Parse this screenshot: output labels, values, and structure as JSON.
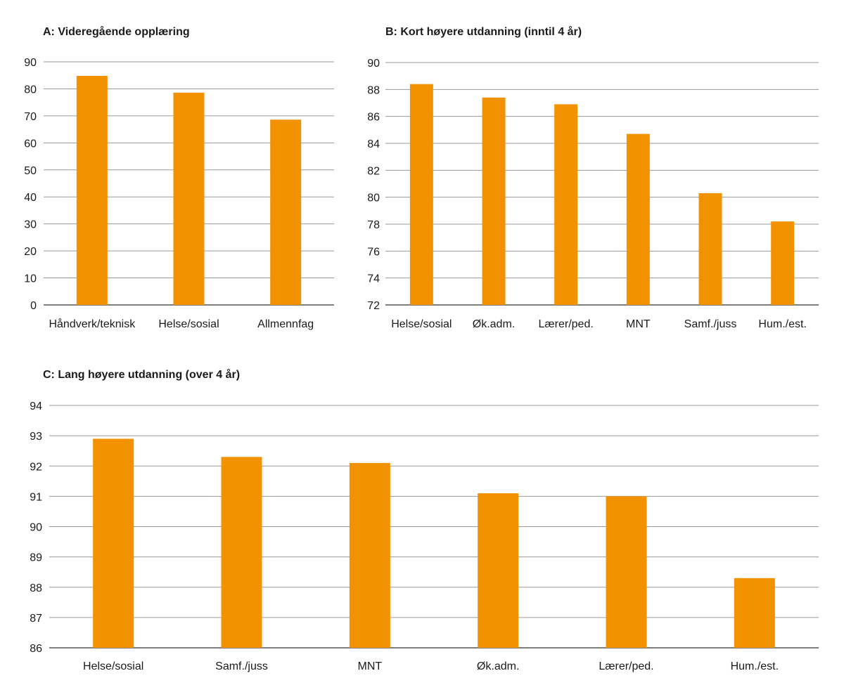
{
  "chart_data": [
    {
      "type": "bar",
      "title": "A: Videregående opplæring",
      "categories": [
        "Håndverk/teknisk",
        "Helse/sosial",
        "Allmennfag"
      ],
      "values": [
        84.8,
        78.6,
        68.6
      ],
      "ylim": [
        0,
        90
      ],
      "yticks": [
        0,
        10,
        20,
        30,
        40,
        50,
        60,
        70,
        80,
        90
      ],
      "grid": true,
      "color": "#f39200"
    },
    {
      "type": "bar",
      "title": "B: Kort høyere utdanning (inntil 4 år)",
      "categories": [
        "Helse/sosial",
        "Øk.adm.",
        "Lærer/ped.",
        "MNT",
        "Samf./juss",
        "Hum./est."
      ],
      "values": [
        88.4,
        87.4,
        86.9,
        84.7,
        80.3,
        78.2
      ],
      "ylim": [
        72,
        90
      ],
      "yticks": [
        72,
        74,
        76,
        78,
        80,
        82,
        84,
        86,
        88,
        90
      ],
      "grid": true,
      "color": "#f39200"
    },
    {
      "type": "bar",
      "title": "C: Lang høyere utdanning (over 4 år)",
      "categories": [
        "Helse/sosial",
        "Samf./juss",
        "MNT",
        "Øk.adm.",
        "Lærer/ped.",
        "Hum./est."
      ],
      "values": [
        92.9,
        92.3,
        92.1,
        91.1,
        91.0,
        88.3
      ],
      "ylim": [
        86,
        94
      ],
      "yticks": [
        86,
        87,
        88,
        89,
        90,
        91,
        92,
        93,
        94
      ],
      "grid": true,
      "color": "#f39200"
    }
  ]
}
